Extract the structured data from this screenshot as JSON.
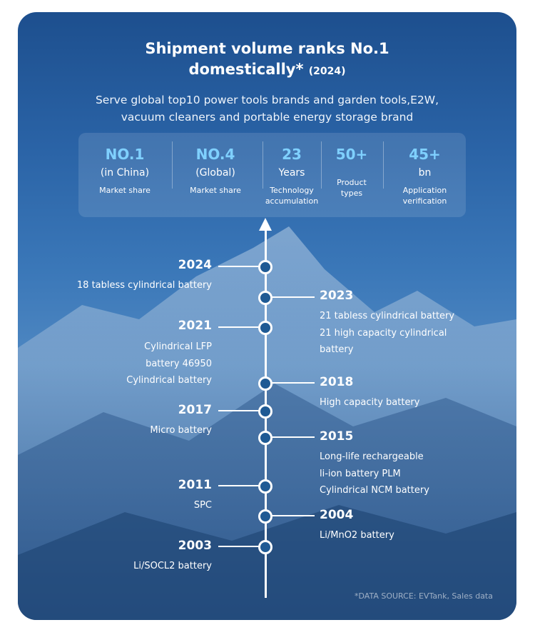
{
  "title": {
    "line1": "Shipment volume ranks No.1",
    "line2": "domestically*",
    "year_tag": "(2024)"
  },
  "subtitle": {
    "line1": "Serve global top10 power tools brands and garden tools,E2W,",
    "line2": "vacuum cleaners and portable energy storage brand"
  },
  "stats": [
    {
      "value": "NO.1",
      "sub": "(in China)",
      "caption": [
        "Market share"
      ]
    },
    {
      "value": "NO.4",
      "sub": "(Global)",
      "caption": [
        "Market share"
      ]
    },
    {
      "value": "23",
      "sub": "Years",
      "caption": [
        "Technology",
        "accumulation"
      ]
    },
    {
      "value": "50+",
      "sub": "",
      "caption": [
        "Product",
        "types"
      ]
    },
    {
      "value": "45+",
      "sub": "bn",
      "caption": [
        "Application",
        "verification"
      ]
    }
  ],
  "timeline": [
    {
      "year": "2024",
      "side": "left",
      "items": [
        "18 tabless cylindrical battery"
      ]
    },
    {
      "year": "2023",
      "side": "right",
      "items": [
        "21 tabless cylindrical battery",
        "21 high capacity cylindrical",
        "battery"
      ]
    },
    {
      "year": "2021",
      "side": "left",
      "items": [
        "Cylindrical LFP",
        "battery 46950",
        "Cylindrical battery"
      ]
    },
    {
      "year": "2018",
      "side": "right",
      "items": [
        "High capacity battery"
      ]
    },
    {
      "year": "2017",
      "side": "left",
      "items": [
        "Micro battery"
      ]
    },
    {
      "year": "2015",
      "side": "right",
      "items": [
        "Long-life rechargeable",
        "li-ion battery PLM",
        "Cylindrical NCM battery"
      ]
    },
    {
      "year": "2011",
      "side": "left",
      "items": [
        "SPC"
      ]
    },
    {
      "year": "2004",
      "side": "right",
      "items": [
        "Li/MnO2 battery"
      ]
    },
    {
      "year": "2003",
      "side": "left",
      "items": [
        "Li/SOCL2  battery"
      ]
    }
  ],
  "source_note": "*DATA SOURCE: EVTank, Sales data",
  "colors": {
    "accent": "#7fd0ff",
    "card": "#2a63a6",
    "node_fill": "#1f5a94"
  }
}
